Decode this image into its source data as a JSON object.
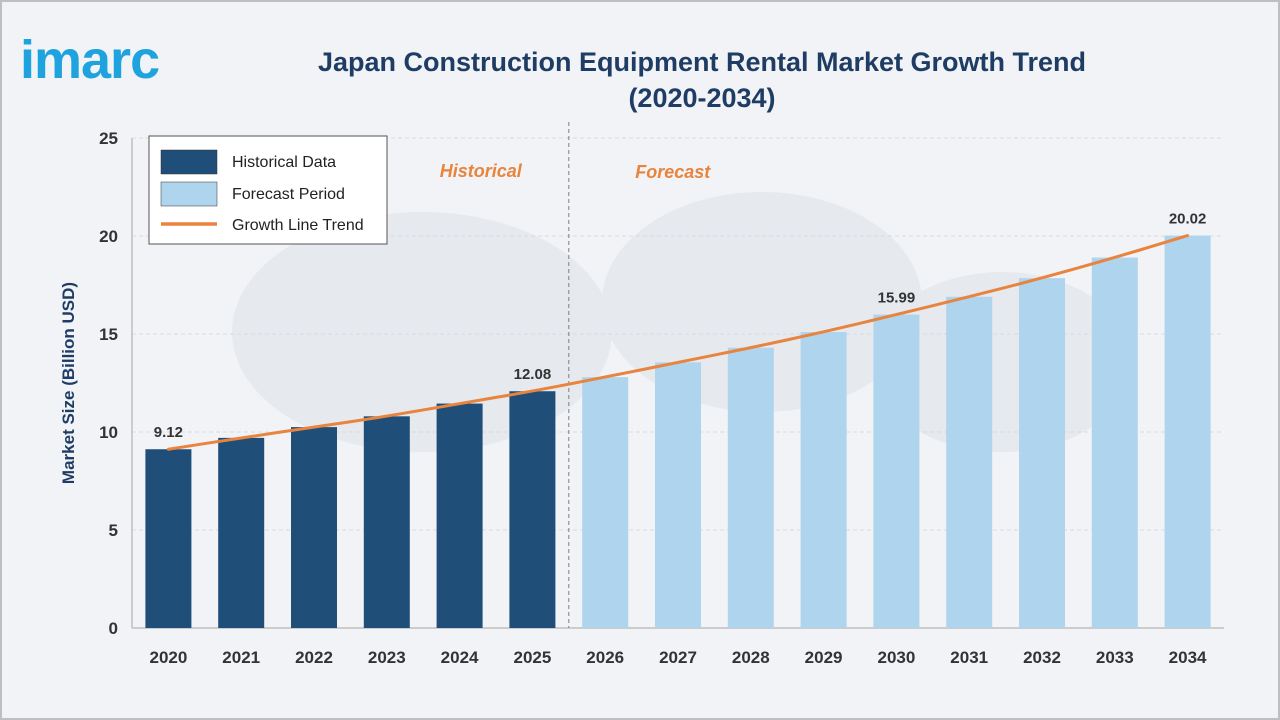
{
  "brand": {
    "logo_text": "imarc",
    "logo_color": "#1fa3de"
  },
  "title_line1": "Japan Construction Equipment Rental Market Growth Trend",
  "title_line2": "(2020-2034)",
  "colors": {
    "historical": "#1f4e79",
    "forecast": "#aed4ee",
    "trend": "#e8843e",
    "title": "#1f3d64"
  },
  "chart_data": {
    "type": "bar",
    "title": "Japan Construction Equipment Rental Market Growth Trend (2020-2034)",
    "ylabel": "Market Size (Billion USD)",
    "xlabel": "",
    "ylim": [
      0,
      25
    ],
    "yticks": [
      0,
      5,
      10,
      15,
      20,
      25
    ],
    "grid": true,
    "legend_position": "top-left",
    "categories": [
      "2020",
      "2021",
      "2022",
      "2023",
      "2024",
      "2025",
      "2026",
      "2027",
      "2028",
      "2029",
      "2030",
      "2031",
      "2032",
      "2033",
      "2034"
    ],
    "values": [
      9.12,
      9.7,
      10.25,
      10.8,
      11.45,
      12.08,
      12.8,
      13.55,
      14.3,
      15.1,
      15.99,
      16.9,
      17.85,
      18.9,
      20.02
    ],
    "historical_count": 6,
    "data_labels": [
      {
        "index": 0,
        "text": "9.12"
      },
      {
        "index": 5,
        "text": "12.08"
      },
      {
        "index": 10,
        "text": "15.99"
      },
      {
        "index": 14,
        "text": "20.02"
      }
    ],
    "period_labels": {
      "historical": "Historical",
      "forecast": "Forecast"
    },
    "legend": {
      "historical": "Historical Data",
      "forecast": "Forecast Period",
      "trend": "Growth Line Trend"
    }
  }
}
